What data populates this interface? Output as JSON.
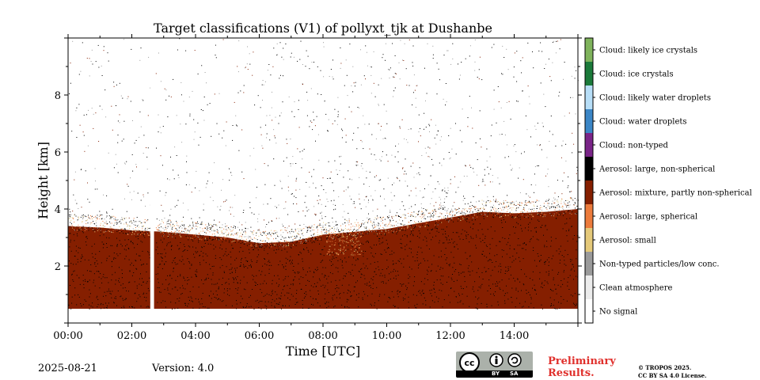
{
  "chart_data": {
    "type": "heatmap",
    "title": "Target classifications (V1) of pollyxt_tjk at Dushanbe",
    "xlabel": "Time [UTC]",
    "ylabel": "Height [km]",
    "xlim_hours": [
      0,
      16
    ],
    "ylim_km": [
      0,
      10
    ],
    "x_ticks": [
      {
        "value": 0,
        "label": "00:00"
      },
      {
        "value": 2,
        "label": "02:00"
      },
      {
        "value": 4,
        "label": "04:00"
      },
      {
        "value": 6,
        "label": "06:00"
      },
      {
        "value": 8,
        "label": "08:00"
      },
      {
        "value": 10,
        "label": "10:00"
      },
      {
        "value": 12,
        "label": "12:00"
      },
      {
        "value": 14,
        "label": "14:00"
      }
    ],
    "y_ticks": [
      {
        "value": 2,
        "label": "2"
      },
      {
        "value": 4,
        "label": "4"
      },
      {
        "value": 6,
        "label": "6"
      },
      {
        "value": 8,
        "label": "8"
      }
    ],
    "lowest_range_gate_km": 0.5,
    "data_gap_hours": [
      2.58,
      2.7
    ],
    "aerosol_layer_top_km": [
      {
        "t": 0,
        "h": 3.4
      },
      {
        "t": 1,
        "h": 3.35
      },
      {
        "t": 2,
        "h": 3.25
      },
      {
        "t": 3,
        "h": 3.2
      },
      {
        "t": 4,
        "h": 3.1
      },
      {
        "t": 5,
        "h": 3.0
      },
      {
        "t": 6,
        "h": 2.8
      },
      {
        "t": 7,
        "h": 2.85
      },
      {
        "t": 8,
        "h": 3.1
      },
      {
        "t": 9,
        "h": 3.2
      },
      {
        "t": 10,
        "h": 3.3
      },
      {
        "t": 11,
        "h": 3.5
      },
      {
        "t": 12,
        "h": 3.7
      },
      {
        "t": 13,
        "h": 3.9
      },
      {
        "t": 14,
        "h": 3.85
      },
      {
        "t": 15,
        "h": 3.9
      },
      {
        "t": 16,
        "h": 4.0
      }
    ],
    "legend": [
      {
        "label": "Cloud: likely ice crystals",
        "color": "#7fb35c"
      },
      {
        "label": "Cloud: ice crystals",
        "color": "#1b7a3a"
      },
      {
        "label": "Cloud: likely water droplets",
        "color": "#b7def7"
      },
      {
        "label": "Cloud: water droplets",
        "color": "#3b86c6"
      },
      {
        "label": "Cloud: non-typed",
        "color": "#7a2488"
      },
      {
        "label": "Aerosol: large, non-spherical",
        "color": "#000000"
      },
      {
        "label": "Aerosol: mixture, partly non-spherical",
        "color": "#851f00"
      },
      {
        "label": "Aerosol: large, spherical",
        "color": "#ec7b3c"
      },
      {
        "label": "Aerosol: small",
        "color": "#e5c97a"
      },
      {
        "label": "Non-typed particles/low conc.",
        "color": "#9a9a9a"
      },
      {
        "label": "Clean atmosphere",
        "color": "#ececec"
      },
      {
        "label": "No signal",
        "color": "#ffffff"
      }
    ]
  },
  "footer": {
    "date": "2025-08-21",
    "version": "Version: 4.0",
    "preliminary": [
      "Preliminary",
      "Results."
    ],
    "copyright": [
      "© TROPOS 2025.",
      "CC BY SA 4.0 License."
    ],
    "license_badge": {
      "cc": "cc",
      "by": "BY",
      "sa": "SA"
    }
  }
}
